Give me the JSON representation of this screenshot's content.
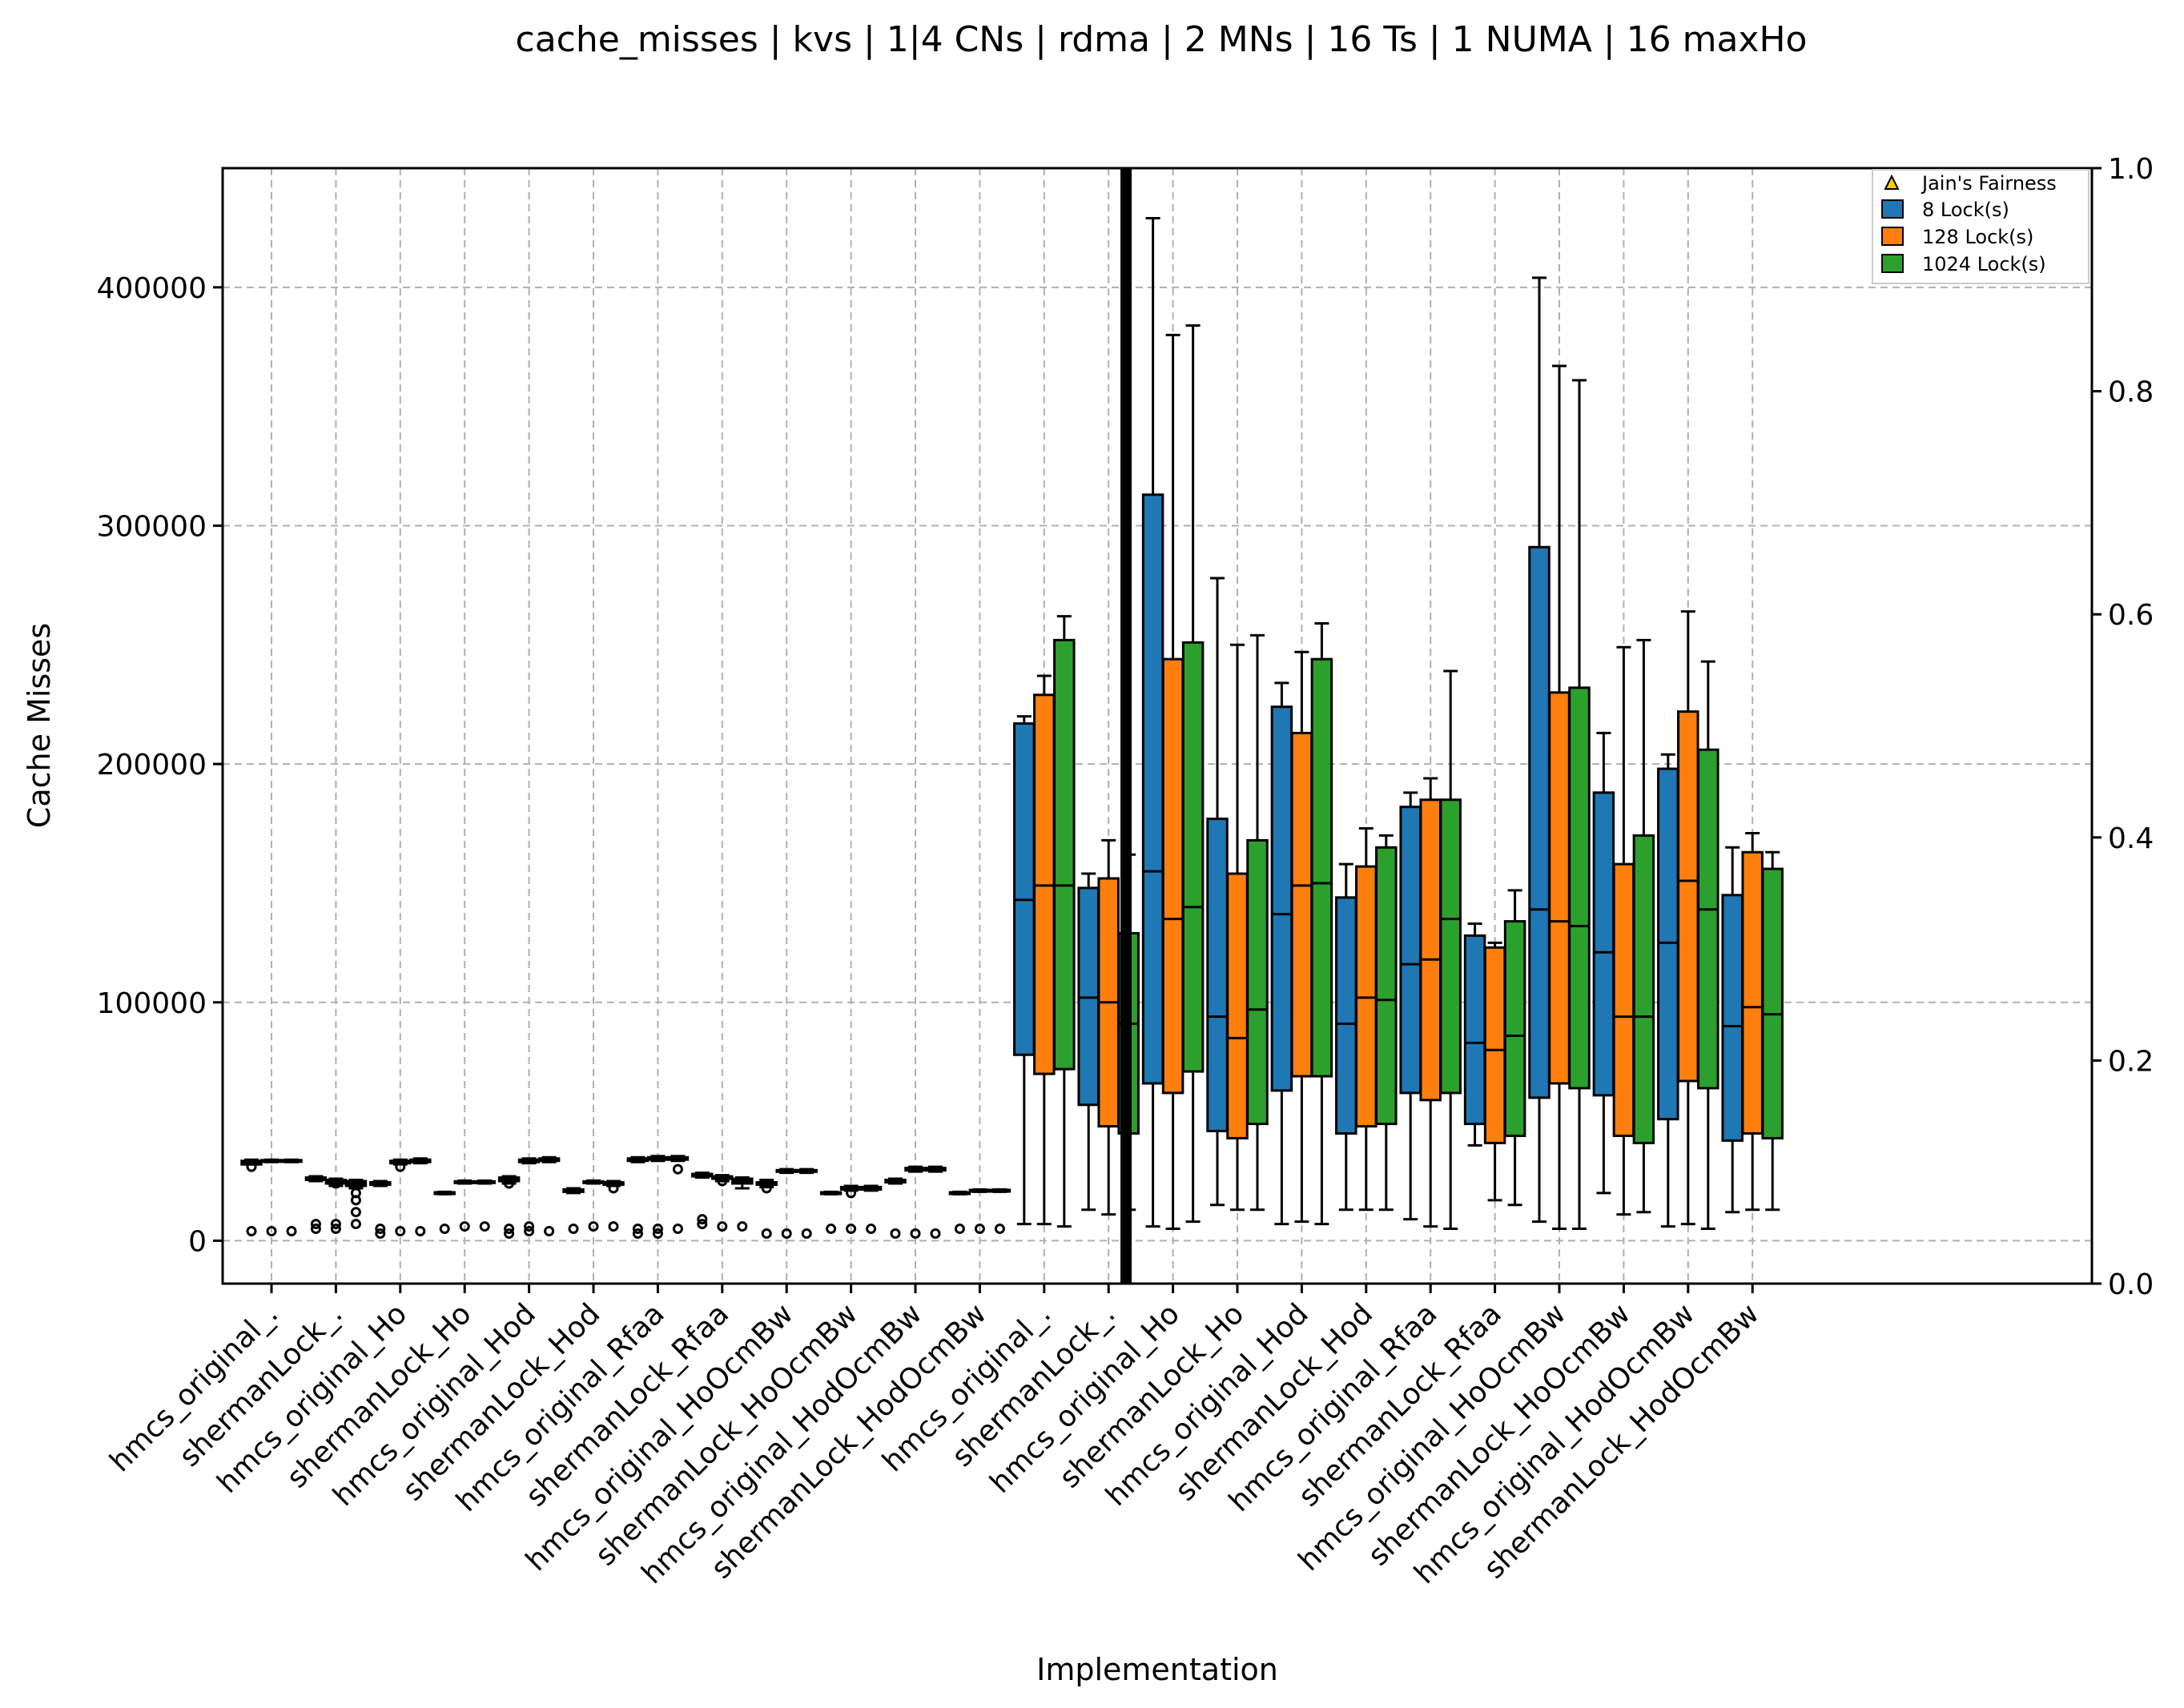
{
  "chart_data": {
    "type": "box",
    "title": "cache_misses | kvs | 1|4 CNs | rdma | 2 MNs | 16 Ts | 1 NUMA | 16 maxHo",
    "xlabel": "Implementation",
    "ylabel": "Cache Misses",
    "ylim": [
      -18000,
      450000
    ],
    "y2lim": [
      0.0,
      1.0
    ],
    "yticks": [
      "0",
      "100000",
      "200000",
      "300000",
      "400000"
    ],
    "y2ticks": [
      "0.0",
      "0.2",
      "0.4",
      "0.6",
      "0.8",
      "1.0"
    ],
    "grid": true,
    "legend_position": "top-right",
    "legend": [
      {
        "label": "Jain's Fairness",
        "marker": "triangle",
        "color": "#f5d000"
      },
      {
        "label": "8 Lock(s)",
        "marker": "box",
        "color": "#1f77b4"
      },
      {
        "label": "128 Lock(s)",
        "marker": "box",
        "color": "#ff7f0e"
      },
      {
        "label": "1024 Lock(s)",
        "marker": "box",
        "color": "#2ca02c"
      }
    ],
    "categories": [
      "hmcs_original_.",
      "shermanLock_.",
      "hmcs_original_Ho",
      "shermanLock_Ho",
      "hmcs_original_Hod",
      "shermanLock_Hod",
      "hmcs_original_Rfaa",
      "shermanLock_Rfaa",
      "hmcs_original_HoOcmBw",
      "shermanLock_HoOcmBw",
      "hmcs_original_HodOcmBw",
      "shermanLock_HodOcmBw",
      "hmcs_original_.",
      "shermanLock_.",
      "hmcs_original_Ho",
      "shermanLock_Ho",
      "hmcs_original_Hod",
      "shermanLock_Hod",
      "hmcs_original_Rfaa",
      "shermanLock_Rfaa",
      "hmcs_original_HoOcmBw",
      "shermanLock_HoOcmBw",
      "hmcs_original_HodOcmBw",
      "shermanLock_HodOcmBw"
    ],
    "series": [
      {
        "name": "8 Lock(s)",
        "color": "#1f77b4",
        "boxes": [
          {
            "wlo": 32000,
            "q1": 32000,
            "med": 33000,
            "q3": 33500,
            "whi": 34000,
            "fliers": [
              4000,
              31000
            ]
          },
          {
            "wlo": 25000,
            "q1": 25500,
            "med": 26000,
            "q3": 26500,
            "whi": 27000,
            "fliers": [
              5000,
              7000
            ]
          },
          {
            "wlo": 23000,
            "q1": 23500,
            "med": 24000,
            "q3": 24500,
            "whi": 25000,
            "fliers": [
              3000,
              5000
            ]
          },
          {
            "wlo": 19500,
            "q1": 19800,
            "med": 20000,
            "q3": 20300,
            "whi": 20500,
            "fliers": [
              5000
            ]
          },
          {
            "wlo": 24000,
            "q1": 25000,
            "med": 26000,
            "q3": 26500,
            "whi": 27000,
            "fliers": [
              3000,
              5000,
              24000
            ]
          },
          {
            "wlo": 20000,
            "q1": 20500,
            "med": 21000,
            "q3": 21500,
            "whi": 22000,
            "fliers": [
              5000
            ]
          },
          {
            "wlo": 33000,
            "q1": 33500,
            "med": 34000,
            "q3": 34500,
            "whi": 35000,
            "fliers": [
              3000,
              5000
            ]
          },
          {
            "wlo": 26500,
            "q1": 27000,
            "med": 27500,
            "q3": 28000,
            "whi": 28500,
            "fliers": [
              7000,
              9000
            ]
          },
          {
            "wlo": 22500,
            "q1": 23500,
            "med": 24000,
            "q3": 24500,
            "whi": 25500,
            "fliers": [
              3000,
              22000
            ]
          },
          {
            "wlo": 19500,
            "q1": 19800,
            "med": 20000,
            "q3": 20300,
            "whi": 20500,
            "fliers": [
              5000
            ]
          },
          {
            "wlo": 24000,
            "q1": 24500,
            "med": 25000,
            "q3": 25500,
            "whi": 26000,
            "fliers": [
              3000
            ]
          },
          {
            "wlo": 19500,
            "q1": 19800,
            "med": 20000,
            "q3": 20300,
            "whi": 20500,
            "fliers": [
              5000
            ]
          },
          {
            "wlo": 7000,
            "q1": 78000,
            "med": 143000,
            "q3": 217000,
            "whi": 220000,
            "fliers": []
          },
          {
            "wlo": 13000,
            "q1": 57000,
            "med": 102000,
            "q3": 148000,
            "whi": 154000,
            "fliers": []
          },
          {
            "wlo": 6000,
            "q1": 66000,
            "med": 155000,
            "q3": 313000,
            "whi": 429000,
            "fliers": []
          },
          {
            "wlo": 15000,
            "q1": 46000,
            "med": 94000,
            "q3": 177000,
            "whi": 278000,
            "fliers": []
          },
          {
            "wlo": 7000,
            "q1": 63000,
            "med": 137000,
            "q3": 224000,
            "whi": 234000,
            "fliers": []
          },
          {
            "wlo": 13000,
            "q1": 45000,
            "med": 91000,
            "q3": 144000,
            "whi": 158000,
            "fliers": []
          },
          {
            "wlo": 9000,
            "q1": 62000,
            "med": 116000,
            "q3": 182000,
            "whi": 188000,
            "fliers": []
          },
          {
            "wlo": 40000,
            "q1": 49000,
            "med": 83000,
            "q3": 128000,
            "whi": 133000,
            "fliers": []
          },
          {
            "wlo": 8000,
            "q1": 60000,
            "med": 139000,
            "q3": 291000,
            "whi": 404000,
            "fliers": []
          },
          {
            "wlo": 20000,
            "q1": 61000,
            "med": 121000,
            "q3": 188000,
            "whi": 213000,
            "fliers": []
          },
          {
            "wlo": 6000,
            "q1": 51000,
            "med": 125000,
            "q3": 198000,
            "whi": 204000,
            "fliers": []
          },
          {
            "wlo": 12000,
            "q1": 42000,
            "med": 90000,
            "q3": 145000,
            "whi": 165000,
            "fliers": []
          }
        ]
      },
      {
        "name": "128 Lock(s)",
        "color": "#ff7f0e",
        "boxes": [
          {
            "wlo": 33000,
            "q1": 33200,
            "med": 33500,
            "q3": 33800,
            "whi": 34000,
            "fliers": [
              4000
            ]
          },
          {
            "wlo": 23000,
            "q1": 24000,
            "med": 25000,
            "q3": 25500,
            "whi": 26000,
            "fliers": [
              5000,
              7000,
              24000
            ]
          },
          {
            "wlo": 32000,
            "q1": 32500,
            "med": 33000,
            "q3": 33500,
            "whi": 34000,
            "fliers": [
              4000,
              31000
            ]
          },
          {
            "wlo": 24000,
            "q1": 24300,
            "med": 24600,
            "q3": 24900,
            "whi": 25200,
            "fliers": [
              6000
            ]
          },
          {
            "wlo": 32500,
            "q1": 33000,
            "med": 33500,
            "q3": 34000,
            "whi": 34500,
            "fliers": [
              4000,
              6000
            ]
          },
          {
            "wlo": 24000,
            "q1": 24300,
            "med": 24600,
            "q3": 24900,
            "whi": 25200,
            "fliers": [
              6000
            ]
          },
          {
            "wlo": 33500,
            "q1": 34000,
            "med": 34500,
            "q3": 35000,
            "whi": 35500,
            "fliers": [
              3000,
              5000
            ]
          },
          {
            "wlo": 25000,
            "q1": 26000,
            "med": 26500,
            "q3": 27000,
            "whi": 27500,
            "fliers": [
              6000,
              25000
            ]
          },
          {
            "wlo": 28500,
            "q1": 29000,
            "med": 29300,
            "q3": 29600,
            "whi": 30000,
            "fliers": [
              3000
            ]
          },
          {
            "wlo": 21000,
            "q1": 21500,
            "med": 22000,
            "q3": 22500,
            "whi": 23000,
            "fliers": [
              5000,
              20000
            ]
          },
          {
            "wlo": 29000,
            "q1": 29500,
            "med": 30000,
            "q3": 30500,
            "whi": 31000,
            "fliers": [
              3000
            ]
          },
          {
            "wlo": 20500,
            "q1": 20800,
            "med": 21000,
            "q3": 21300,
            "whi": 21500,
            "fliers": [
              5000
            ]
          },
          {
            "wlo": 7000,
            "q1": 70000,
            "med": 149000,
            "q3": 229000,
            "whi": 237000,
            "fliers": []
          },
          {
            "wlo": 11000,
            "q1": 48000,
            "med": 100000,
            "q3": 152000,
            "whi": 168000,
            "fliers": []
          },
          {
            "wlo": 5000,
            "q1": 62000,
            "med": 135000,
            "q3": 244000,
            "whi": 380000,
            "fliers": []
          },
          {
            "wlo": 13000,
            "q1": 43000,
            "med": 85000,
            "q3": 154000,
            "whi": 250000,
            "fliers": []
          },
          {
            "wlo": 8000,
            "q1": 69000,
            "med": 149000,
            "q3": 213000,
            "whi": 247000,
            "fliers": []
          },
          {
            "wlo": 13000,
            "q1": 48000,
            "med": 102000,
            "q3": 157000,
            "whi": 173000,
            "fliers": []
          },
          {
            "wlo": 6000,
            "q1": 59000,
            "med": 118000,
            "q3": 185000,
            "whi": 194000,
            "fliers": []
          },
          {
            "wlo": 17000,
            "q1": 41000,
            "med": 80000,
            "q3": 123000,
            "whi": 125000,
            "fliers": []
          },
          {
            "wlo": 5000,
            "q1": 66000,
            "med": 134000,
            "q3": 230000,
            "whi": 367000,
            "fliers": []
          },
          {
            "wlo": 11000,
            "q1": 44000,
            "med": 94000,
            "q3": 158000,
            "whi": 249000,
            "fliers": []
          },
          {
            "wlo": 7000,
            "q1": 67000,
            "med": 151000,
            "q3": 222000,
            "whi": 264000,
            "fliers": []
          },
          {
            "wlo": 13000,
            "q1": 45000,
            "med": 98000,
            "q3": 163000,
            "whi": 171000,
            "fliers": []
          }
        ]
      },
      {
        "name": "1024 Lock(s)",
        "color": "#2ca02c",
        "boxes": [
          {
            "wlo": 33000,
            "q1": 33200,
            "med": 33500,
            "q3": 33800,
            "whi": 34000,
            "fliers": [
              4000
            ]
          },
          {
            "wlo": 22000,
            "q1": 23000,
            "med": 24000,
            "q3": 25000,
            "whi": 25500,
            "fliers": [
              7000,
              12000,
              17000,
              20000
            ]
          },
          {
            "wlo": 32500,
            "q1": 33000,
            "med": 33500,
            "q3": 34000,
            "whi": 34500,
            "fliers": [
              4000
            ]
          },
          {
            "wlo": 24000,
            "q1": 24300,
            "med": 24600,
            "q3": 24900,
            "whi": 25200,
            "fliers": [
              6000
            ]
          },
          {
            "wlo": 33000,
            "q1": 33500,
            "med": 34000,
            "q3": 34500,
            "whi": 35000,
            "fliers": [
              4000
            ]
          },
          {
            "wlo": 23000,
            "q1": 23500,
            "med": 24000,
            "q3": 24500,
            "whi": 25000,
            "fliers": [
              6000,
              22000
            ]
          },
          {
            "wlo": 33500,
            "q1": 34000,
            "med": 34500,
            "q3": 35000,
            "whi": 35500,
            "fliers": [
              5000,
              30000
            ]
          },
          {
            "wlo": 22000,
            "q1": 24000,
            "med": 25000,
            "q3": 26000,
            "whi": 26500,
            "fliers": [
              6000
            ]
          },
          {
            "wlo": 28500,
            "q1": 29000,
            "med": 29300,
            "q3": 29600,
            "whi": 30000,
            "fliers": [
              3000
            ]
          },
          {
            "wlo": 21000,
            "q1": 21500,
            "med": 22000,
            "q3": 22500,
            "whi": 23000,
            "fliers": [
              5000
            ]
          },
          {
            "wlo": 29000,
            "q1": 29500,
            "med": 30000,
            "q3": 30500,
            "whi": 31000,
            "fliers": [
              3000
            ]
          },
          {
            "wlo": 20500,
            "q1": 20800,
            "med": 21000,
            "q3": 21300,
            "whi": 21500,
            "fliers": [
              5000
            ]
          },
          {
            "wlo": 6000,
            "q1": 72000,
            "med": 149000,
            "q3": 252000,
            "whi": 262000,
            "fliers": []
          },
          {
            "wlo": 13000,
            "q1": 45000,
            "med": 91000,
            "q3": 129000,
            "whi": 162000,
            "fliers": []
          },
          {
            "wlo": 8000,
            "q1": 71000,
            "med": 140000,
            "q3": 251000,
            "whi": 384000,
            "fliers": []
          },
          {
            "wlo": 13000,
            "q1": 49000,
            "med": 97000,
            "q3": 168000,
            "whi": 254000,
            "fliers": []
          },
          {
            "wlo": 7000,
            "q1": 69000,
            "med": 150000,
            "q3": 244000,
            "whi": 259000,
            "fliers": []
          },
          {
            "wlo": 13000,
            "q1": 49000,
            "med": 101000,
            "q3": 165000,
            "whi": 170000,
            "fliers": []
          },
          {
            "wlo": 5000,
            "q1": 62000,
            "med": 135000,
            "q3": 185000,
            "whi": 239000,
            "fliers": []
          },
          {
            "wlo": 15000,
            "q1": 44000,
            "med": 86000,
            "q3": 134000,
            "whi": 147000,
            "fliers": []
          },
          {
            "wlo": 5000,
            "q1": 64000,
            "med": 132000,
            "q3": 232000,
            "whi": 361000,
            "fliers": []
          },
          {
            "wlo": 12000,
            "q1": 41000,
            "med": 94000,
            "q3": 170000,
            "whi": 252000,
            "fliers": []
          },
          {
            "wlo": 5000,
            "q1": 64000,
            "med": 139000,
            "q3": 206000,
            "whi": 243000,
            "fliers": []
          },
          {
            "wlo": 13000,
            "q1": 43000,
            "med": 95000,
            "q3": 156000,
            "whi": 163000,
            "fliers": []
          }
        ]
      }
    ]
  }
}
